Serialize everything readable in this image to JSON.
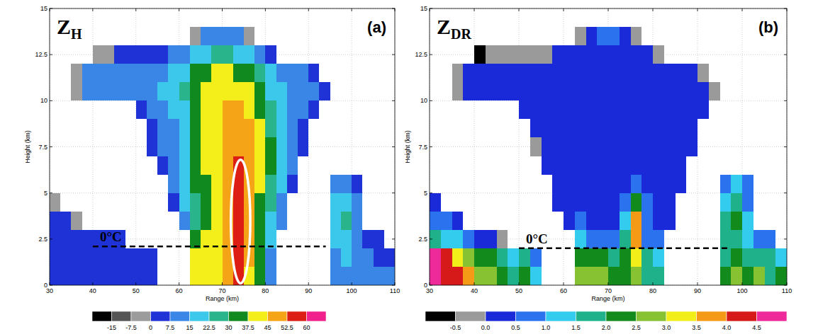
{
  "chart_data": [
    {
      "type": "heatmap",
      "title": {
        "text": "Z",
        "subscript": "H"
      },
      "panel_label": "(a)",
      "x_label": "Range (km)",
      "y_label": "Height (km)",
      "xlim": [
        30,
        110
      ],
      "ylim": [
        0,
        15
      ],
      "xticks": [
        30,
        40,
        50,
        60,
        70,
        80,
        90,
        100,
        110
      ],
      "yticks": [
        0,
        2.5,
        5,
        7.5,
        10,
        12.5,
        15
      ],
      "grid": true,
      "x_edges": [
        30,
        32.5,
        35,
        37.5,
        40,
        42.5,
        45,
        47.5,
        50,
        52.5,
        55,
        57.5,
        60,
        62.5,
        65,
        67.5,
        70,
        72.5,
        75,
        77.5,
        80,
        82.5,
        85,
        87.5,
        90,
        92.5,
        95,
        97.5,
        100,
        102.5,
        105,
        107.5,
        110
      ],
      "y_edges": [
        0,
        1,
        2,
        3,
        4,
        5,
        6,
        7,
        8,
        9,
        10,
        11,
        12,
        13,
        14,
        15
      ],
      "cells": [
        [
          5,
          5,
          5,
          5,
          5,
          5,
          5,
          5,
          5,
          5,
          null,
          null,
          null,
          40,
          42,
          42,
          50,
          55,
          42,
          33,
          10,
          null,
          null,
          null,
          null,
          null,
          10,
          12,
          8,
          8,
          8,
          8
        ],
        [
          5,
          5,
          5,
          5,
          5,
          5,
          5,
          5,
          5,
          5,
          null,
          null,
          null,
          38,
          42,
          42,
          52,
          57,
          45,
          35,
          12,
          null,
          null,
          null,
          null,
          null,
          12,
          15,
          8,
          8,
          5,
          5
        ],
        [
          5,
          5,
          5,
          5,
          2,
          2,
          2,
          null,
          null,
          null,
          null,
          null,
          null,
          30,
          38,
          42,
          48,
          57,
          45,
          30,
          15,
          null,
          null,
          null,
          null,
          null,
          15,
          20,
          10,
          5,
          5,
          null
        ],
        [
          5,
          5,
          -3,
          null,
          null,
          null,
          null,
          null,
          null,
          null,
          null,
          null,
          10,
          25,
          35,
          40,
          45,
          57,
          48,
          30,
          20,
          8,
          null,
          null,
          null,
          null,
          20,
          25,
          10,
          null,
          null,
          null
        ],
        [
          -3,
          null,
          null,
          null,
          null,
          null,
          null,
          null,
          null,
          null,
          null,
          5,
          18,
          28,
          35,
          40,
          45,
          57,
          50,
          35,
          25,
          12,
          null,
          null,
          null,
          null,
          15,
          18,
          8,
          null,
          null,
          null
        ],
        [
          null,
          null,
          null,
          null,
          null,
          null,
          null,
          null,
          null,
          null,
          null,
          8,
          20,
          30,
          35,
          42,
          47,
          55,
          50,
          38,
          28,
          15,
          5,
          null,
          null,
          null,
          10,
          12,
          5,
          null,
          null,
          null
        ],
        [
          null,
          null,
          null,
          null,
          null,
          null,
          null,
          null,
          null,
          null,
          5,
          10,
          22,
          30,
          38,
          42,
          48,
          53,
          50,
          38,
          30,
          18,
          8,
          null,
          null,
          null,
          null,
          null,
          null,
          null,
          null,
          null
        ],
        [
          null,
          null,
          null,
          null,
          null,
          null,
          null,
          null,
          null,
          3,
          8,
          12,
          22,
          32,
          38,
          43,
          47,
          50,
          47,
          38,
          30,
          18,
          10,
          5,
          null,
          null,
          null,
          null,
          null,
          null,
          null,
          null
        ],
        [
          null,
          null,
          null,
          null,
          null,
          null,
          null,
          null,
          null,
          5,
          8,
          12,
          22,
          32,
          38,
          42,
          45,
          47,
          45,
          38,
          28,
          18,
          10,
          5,
          null,
          null,
          null,
          null,
          null,
          null,
          null,
          null
        ],
        [
          null,
          null,
          null,
          null,
          null,
          null,
          null,
          null,
          3,
          8,
          10,
          15,
          22,
          33,
          38,
          42,
          45,
          45,
          42,
          35,
          25,
          15,
          10,
          8,
          5,
          null,
          null,
          null,
          null,
          null,
          null,
          null
        ],
        [
          null,
          null,
          -3,
          8,
          10,
          10,
          10,
          10,
          12,
          12,
          15,
          18,
          25,
          33,
          38,
          40,
          42,
          40,
          38,
          32,
          20,
          15,
          12,
          10,
          10,
          5,
          null,
          null,
          null,
          null,
          null,
          null
        ],
        [
          null,
          null,
          -3,
          8,
          8,
          8,
          8,
          8,
          10,
          10,
          12,
          15,
          22,
          30,
          35,
          38,
          38,
          36,
          33,
          28,
          18,
          12,
          10,
          8,
          5,
          null,
          null,
          null,
          null,
          null,
          null,
          null
        ],
        [
          null,
          null,
          null,
          null,
          -3,
          -3,
          2,
          2,
          3,
          5,
          5,
          8,
          12,
          18,
          22,
          25,
          25,
          22,
          18,
          12,
          5,
          null,
          null,
          null,
          null,
          null,
          null,
          null,
          null,
          null,
          null,
          null
        ],
        [
          null,
          null,
          null,
          null,
          null,
          null,
          null,
          null,
          null,
          null,
          null,
          null,
          null,
          -3,
          8,
          10,
          10,
          8,
          -3,
          null,
          null,
          null,
          null,
          null,
          null,
          null,
          null,
          null,
          null,
          null,
          null,
          null
        ],
        [
          null,
          null,
          null,
          null,
          null,
          null,
          null,
          null,
          null,
          null,
          null,
          null,
          null,
          null,
          null,
          null,
          null,
          null,
          null,
          null,
          null,
          null,
          null,
          null,
          null,
          null,
          null,
          null,
          null,
          null,
          null,
          null
        ]
      ],
      "colorbar": {
        "range": [
          -22.5,
          67.5
        ],
        "ticks": [
          -15,
          -7.5,
          0,
          7.5,
          15,
          22.5,
          30,
          37.5,
          45,
          52.5,
          60
        ],
        "colors": [
          "#000000",
          "#555555",
          "#9c9c9c",
          "#1f32d6",
          "#3a86e6",
          "#3cc8ea",
          "#2ab48c",
          "#108a1e",
          "#f4ee1a",
          "#f5a418",
          "#dc1e14",
          "#f0208c"
        ]
      },
      "annotations": [
        {
          "text": "0°C",
          "x": [
            40,
            94
          ],
          "y": 2.1,
          "line_style": "dashed"
        }
      ],
      "highlight": {
        "x": [
          72,
          76.5
        ],
        "y": [
          0.1,
          6.8
        ],
        "color": "#ffffff"
      }
    },
    {
      "type": "heatmap",
      "title": {
        "text": "Z",
        "subscript": "DR"
      },
      "panel_label": "(b)",
      "x_label": "Range (km)",
      "y_label": "Height (km)",
      "xlim": [
        30,
        110
      ],
      "ylim": [
        0,
        15
      ],
      "xticks": [
        30,
        40,
        50,
        60,
        70,
        80,
        90,
        100,
        110
      ],
      "yticks": [
        0,
        2.5,
        5,
        7.5,
        10,
        12.5,
        15
      ],
      "grid": true,
      "x_edges": [
        30,
        32.5,
        35,
        37.5,
        40,
        42.5,
        45,
        47.5,
        50,
        52.5,
        55,
        57.5,
        60,
        62.5,
        65,
        67.5,
        70,
        72.5,
        75,
        77.5,
        80,
        82.5,
        85,
        87.5,
        90,
        92.5,
        95,
        97.5,
        100,
        102.5,
        105,
        107.5,
        110
      ],
      "y_edges": [
        0,
        1,
        2,
        3,
        4,
        5,
        6,
        7,
        8,
        9,
        10,
        11,
        12,
        13,
        14,
        15
      ],
      "cells": [
        [
          4.6,
          4.4,
          4.2,
          3.5,
          2.5,
          2.8,
          2.0,
          1.5,
          2.2,
          1.0,
          null,
          null,
          null,
          2.6,
          2.8,
          2.6,
          2.2,
          2.0,
          2.8,
          1.8,
          1.5,
          null,
          null,
          null,
          null,
          null,
          2.2,
          2.5,
          2.0,
          2.5,
          1.8,
          2.2
        ],
        [
          4.5,
          4.2,
          3.0,
          2.5,
          2.0,
          2.2,
          1.8,
          1.2,
          1.5,
          0.8,
          null,
          null,
          null,
          2.2,
          2.4,
          2.2,
          1.8,
          2.2,
          3.2,
          1.5,
          1.2,
          null,
          null,
          null,
          null,
          null,
          1.8,
          2.2,
          1.5,
          1.8,
          1.5,
          1.2
        ],
        [
          1.5,
          1.2,
          1.0,
          0.8,
          0.2,
          0.0,
          -0.2,
          null,
          null,
          null,
          null,
          null,
          null,
          1.0,
          0.8,
          0.8,
          0.6,
          1.5,
          3.8,
          0.8,
          0.6,
          null,
          null,
          null,
          null,
          null,
          1.5,
          1.8,
          1.0,
          0.5,
          0.5,
          null
        ],
        [
          0.8,
          0.5,
          0.2,
          null,
          null,
          null,
          null,
          null,
          null,
          null,
          null,
          null,
          0.3,
          0.5,
          0.4,
          0.4,
          0.4,
          1.0,
          3.6,
          0.6,
          0.4,
          0.2,
          null,
          null,
          null,
          null,
          1.8,
          2.2,
          1.0,
          null,
          null,
          null
        ],
        [
          0.2,
          null,
          null,
          null,
          null,
          null,
          null,
          null,
          null,
          null,
          null,
          0.0,
          0.2,
          0.3,
          0.3,
          0.3,
          0.3,
          0.6,
          2.4,
          0.5,
          0.3,
          0.2,
          null,
          null,
          null,
          null,
          1.2,
          1.5,
          0.8,
          null,
          null,
          null
        ],
        [
          null,
          null,
          null,
          null,
          null,
          null,
          null,
          null,
          null,
          null,
          null,
          0.1,
          0.2,
          0.3,
          0.3,
          0.3,
          0.3,
          0.4,
          0.8,
          0.4,
          0.3,
          0.2,
          0.0,
          null,
          null,
          null,
          0.8,
          1.0,
          0.5,
          null,
          null,
          null
        ],
        [
          null,
          null,
          null,
          null,
          null,
          null,
          null,
          null,
          null,
          null,
          0.0,
          0.2,
          0.3,
          0.3,
          0.3,
          0.3,
          0.3,
          0.3,
          0.4,
          0.3,
          0.3,
          0.2,
          0.0,
          null,
          null,
          null,
          null,
          null,
          null,
          null,
          null,
          null
        ],
        [
          null,
          null,
          null,
          null,
          null,
          null,
          null,
          null,
          null,
          -0.1,
          0.1,
          0.2,
          0.3,
          0.3,
          0.3,
          0.3,
          0.3,
          0.3,
          0.2,
          0.3,
          0.3,
          0.2,
          0.1,
          0.0,
          null,
          null,
          null,
          null,
          null,
          null,
          null,
          null
        ],
        [
          null,
          null,
          null,
          null,
          null,
          null,
          null,
          null,
          null,
          0.0,
          0.2,
          0.2,
          0.4,
          0.3,
          0.3,
          0.3,
          0.2,
          0.3,
          0.3,
          0.3,
          0.2,
          0.2,
          0.1,
          0.0,
          null,
          null,
          null,
          null,
          null,
          null,
          null,
          null
        ],
        [
          null,
          null,
          null,
          null,
          null,
          null,
          null,
          null,
          0.0,
          0.1,
          0.2,
          0.2,
          0.3,
          0.3,
          0.3,
          0.2,
          0.2,
          0.3,
          0.3,
          0.2,
          0.2,
          0.2,
          0.2,
          0.1,
          0.0,
          null,
          null,
          null,
          null,
          null,
          null,
          null
        ],
        [
          null,
          null,
          -0.2,
          0.1,
          0.2,
          0.2,
          0.2,
          0.2,
          0.2,
          0.2,
          0.3,
          0.2,
          0.2,
          0.2,
          0.2,
          0.2,
          0.2,
          0.2,
          0.2,
          0.2,
          0.2,
          0.2,
          0.2,
          0.2,
          0.1,
          -0.2,
          null,
          null,
          null,
          null,
          null,
          null
        ],
        [
          null,
          null,
          -0.3,
          0.0,
          0.2,
          0.2,
          0.2,
          0.2,
          0.2,
          0.2,
          0.2,
          0.2,
          0.2,
          0.2,
          0.2,
          0.2,
          0.2,
          0.2,
          0.2,
          0.2,
          0.2,
          0.2,
          0.1,
          0.0,
          -0.3,
          null,
          null,
          null,
          null,
          null,
          null,
          null
        ],
        [
          null,
          null,
          null,
          null,
          -0.6,
          -0.4,
          -0.4,
          -0.3,
          -0.3,
          -0.2,
          -0.2,
          0.0,
          0.1,
          0.2,
          0.2,
          0.2,
          0.3,
          0.2,
          0.1,
          0.0,
          -0.4,
          null,
          null,
          null,
          null,
          null,
          null,
          null,
          null,
          null,
          null,
          null
        ],
        [
          null,
          null,
          null,
          null,
          null,
          null,
          null,
          null,
          null,
          null,
          null,
          null,
          null,
          -0.3,
          0.2,
          0.6,
          0.8,
          0.3,
          -0.3,
          null,
          null,
          null,
          null,
          null,
          null,
          null,
          null,
          null,
          null,
          null,
          null,
          null
        ],
        [
          null,
          null,
          null,
          null,
          null,
          null,
          null,
          null,
          null,
          null,
          null,
          null,
          null,
          null,
          null,
          null,
          null,
          null,
          null,
          null,
          null,
          null,
          null,
          null,
          null,
          null,
          null,
          null,
          null,
          null,
          null,
          null
        ]
      ],
      "colorbar": {
        "range": [
          -1,
          5
        ],
        "ticks": [
          -0.5,
          {
            "value": 0,
            "label": "0.0"
          },
          0.5,
          {
            "value": 1,
            "label": "1.0"
          },
          1.5,
          {
            "value": 2,
            "label": "2.0"
          },
          2.5,
          {
            "value": 3,
            "label": "3.0"
          },
          3.5,
          {
            "value": 4,
            "label": "4.0"
          },
          4.5
        ],
        "colors": [
          "#000000",
          "#9a9a9a",
          "#1a2ad8",
          "#2a72ee",
          "#33ccee",
          "#1fb28a",
          "#138a1c",
          "#86c232",
          "#f2ee1a",
          "#f59a16",
          "#d61a1a",
          "#ee2a9a"
        ]
      },
      "annotations": [
        {
          "text": "0°C",
          "x": [
            50,
            97
          ],
          "y": 2.0,
          "line_style": "dashed"
        }
      ]
    }
  ]
}
